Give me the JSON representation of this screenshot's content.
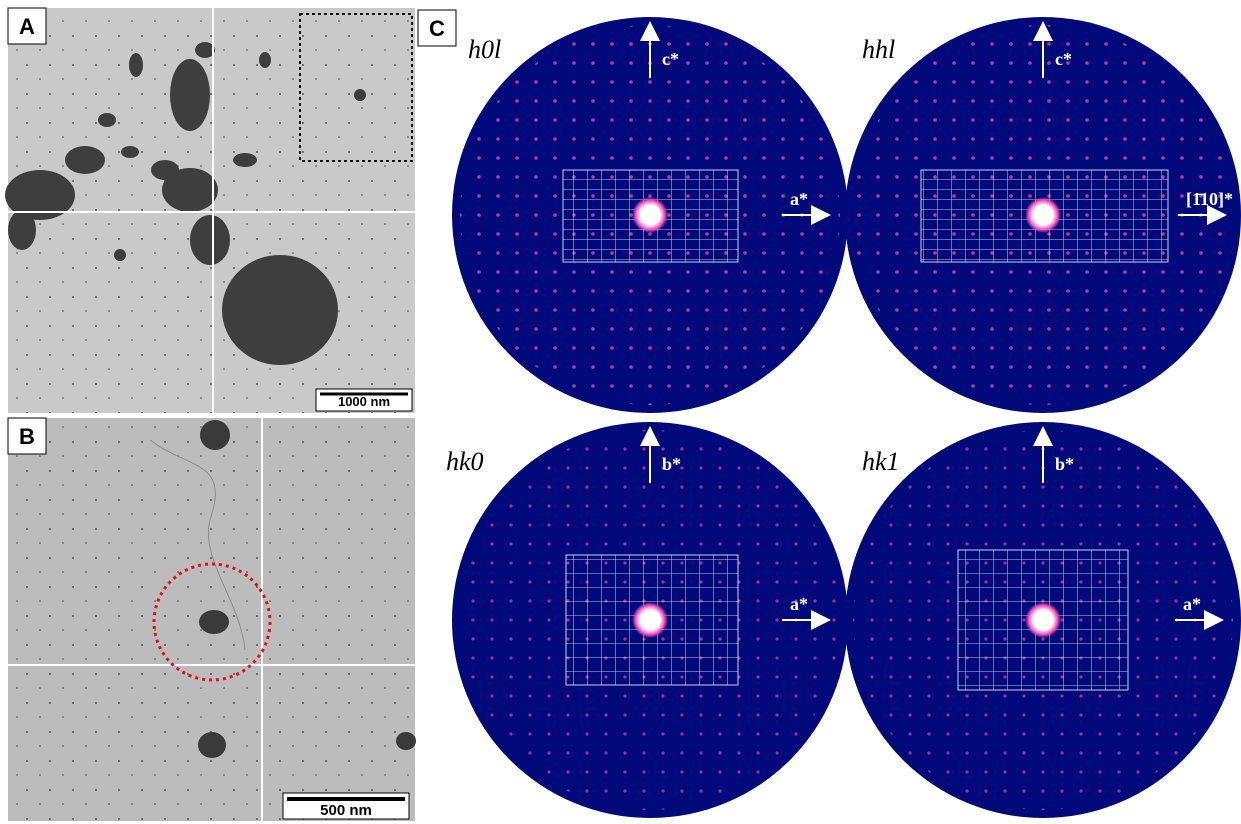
{
  "panels": {
    "A": {
      "label": "A",
      "scale_bar": "1000 nm"
    },
    "B": {
      "label": "B",
      "scale_bar": "500 nm"
    },
    "C": {
      "label": "C",
      "patterns": [
        {
          "title": "h0l",
          "vertical_axis": "c*",
          "horizontal_axis": "a*"
        },
        {
          "title": "hhl",
          "vertical_axis": "c*",
          "horizontal_axis": "[1̄10]*"
        },
        {
          "title": "hk0",
          "vertical_axis": "b*",
          "horizontal_axis": "a*"
        },
        {
          "title": "hk1",
          "vertical_axis": "b*",
          "horizontal_axis": "a*"
        }
      ]
    }
  }
}
